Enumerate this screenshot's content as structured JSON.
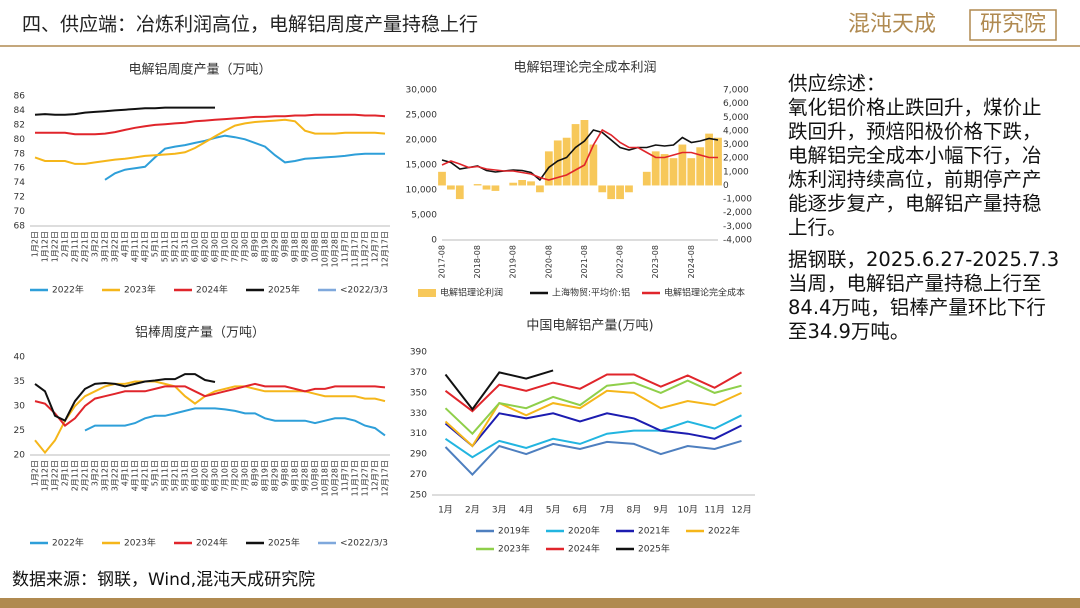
{
  "header": {
    "title": "四、供应端：冶炼利润高位，电解铝周度产量持稳上行",
    "logo": {
      "name": "混沌天成",
      "sub": "研究院"
    }
  },
  "commentary": {
    "heading": "供应综述：",
    "paragraphs": [
      "氧化铝价格止跌回升，煤价止跌回升，预焙阳极价格下跌，电解铝完全成本小幅下行，冶炼利润持续高位，前期停产产能逐步复产，电解铝产量持稳上行。",
      "据钢联，2025.6.27-2025.7.3当周，电解铝产量持稳上行至84.4万吨，铝棒产量环比下行至34.9万吨。"
    ]
  },
  "source": "数据来源：钢联，Wind,混沌天成研究院",
  "chart_data": [
    {
      "type": "line",
      "title": "电解铝周度产量（万吨）",
      "grid": false,
      "categories": [
        "1月2日",
        "1月12日",
        "1月22日",
        "2月1日",
        "2月11日",
        "2月21日",
        "3月2日",
        "3月12日",
        "3月22日",
        "4月1日",
        "4月11日",
        "4月21日",
        "5月1日",
        "5月11日",
        "5月21日",
        "5月31日",
        "6月10日",
        "6月20日",
        "6月30日",
        "7月10日",
        "7月20日",
        "7月30日",
        "8月9日",
        "8月19日",
        "8月29日",
        "9月8日",
        "9月18日",
        "9月28日",
        "10月8日",
        "10月18日",
        "10月28日",
        "11月7日",
        "11月17日",
        "11月27日",
        "12月7日",
        "12月17日"
      ],
      "ylim": [
        68,
        86
      ],
      "yticks": [
        68,
        70,
        72,
        74,
        76,
        78,
        80,
        82,
        84,
        86
      ],
      "series": [
        {
          "name": "2022年",
          "color": "#2e9fd9",
          "values": [
            null,
            null,
            null,
            null,
            null,
            null,
            null,
            74.4,
            75.3,
            75.8,
            76,
            76.2,
            77.5,
            78.7,
            79,
            79.2,
            79.5,
            79.8,
            80.2,
            80.5,
            80.3,
            80,
            79.5,
            79,
            77.8,
            76.8,
            77,
            77.3,
            77.4,
            77.5,
            77.6,
            77.7,
            77.9,
            78,
            78,
            78
          ]
        },
        {
          "name": "2023年",
          "color": "#f5b61a",
          "values": [
            77.5,
            77,
            77,
            77,
            76.6,
            76.6,
            76.8,
            77,
            77.2,
            77.3,
            77.5,
            77.7,
            77.8,
            77.9,
            78,
            78.2,
            78.8,
            79.6,
            80.4,
            81.2,
            81.9,
            82.2,
            82.4,
            82.5,
            82.6,
            82.7,
            82.5,
            81.2,
            80.8,
            80.8,
            80.8,
            80.9,
            80.9,
            80.9,
            80.9,
            80.8
          ]
        },
        {
          "name": "2024年",
          "color": "#e0252b",
          "values": [
            80.9,
            80.9,
            80.9,
            80.9,
            80.7,
            80.7,
            80.7,
            80.8,
            81,
            81.3,
            81.6,
            81.8,
            82,
            82.1,
            82.2,
            82.3,
            82.5,
            82.6,
            82.7,
            82.8,
            82.9,
            83,
            83.1,
            83.1,
            83.2,
            83.2,
            83.3,
            83.3,
            83.4,
            83.4,
            83.4,
            83.4,
            83.4,
            83.3,
            83.3,
            83.2
          ]
        },
        {
          "name": "2025年",
          "color": "#111111",
          "values": [
            83.4,
            83.5,
            83.4,
            83.4,
            83.5,
            83.7,
            83.8,
            83.9,
            84,
            84.1,
            84.2,
            84.3,
            84.3,
            84.4,
            84.4,
            84.4,
            84.4,
            84.4,
            84.4,
            null,
            null,
            null,
            null,
            null,
            null,
            null,
            null,
            null,
            null,
            null,
            null,
            null,
            null,
            null,
            null,
            null
          ]
        },
        {
          "name": "<2022/3/3",
          "color": "#7fa8dc",
          "values": [
            null,
            null,
            null,
            null,
            null,
            null,
            null,
            null,
            null,
            null,
            null,
            null,
            null,
            null,
            null,
            null,
            null,
            null,
            null,
            null,
            null,
            null,
            null,
            null,
            null,
            null,
            null,
            null,
            null,
            null,
            null,
            null,
            null,
            null,
            null,
            null
          ]
        }
      ]
    },
    {
      "type": "line",
      "title": "铝棒周度产量（万吨）",
      "grid": false,
      "categories": [
        "1月2日",
        "1月12日",
        "1月22日",
        "2月1日",
        "2月11日",
        "2月21日",
        "3月2日",
        "3月12日",
        "3月22日",
        "4月1日",
        "4月11日",
        "4月21日",
        "5月1日",
        "5月11日",
        "5月21日",
        "5月31日",
        "6月10日",
        "6月20日",
        "6月30日",
        "7月10日",
        "7月20日",
        "7月30日",
        "8月9日",
        "8月19日",
        "8月29日",
        "9月8日",
        "9月18日",
        "9月28日",
        "10月8日",
        "10月18日",
        "10月28日",
        "11月7日",
        "11月17日",
        "11月27日",
        "12月7日",
        "12月17日"
      ],
      "ylim": [
        20,
        40
      ],
      "yticks": [
        20,
        25,
        30,
        35,
        40
      ],
      "series": [
        {
          "name": "2022年",
          "color": "#2e9fd9",
          "values": [
            null,
            null,
            null,
            null,
            null,
            25,
            26,
            26,
            26,
            26,
            26.5,
            27.5,
            28,
            28,
            28.5,
            29,
            29.5,
            29.5,
            29.5,
            29.3,
            29,
            28.5,
            28.5,
            27.5,
            27,
            27,
            27,
            27,
            26.5,
            27,
            27.5,
            27.5,
            27,
            26,
            25.5,
            24
          ]
        },
        {
          "name": "2023年",
          "color": "#f5b61a",
          "values": [
            23,
            20.5,
            23,
            27,
            30,
            32,
            33,
            34,
            34.5,
            34.5,
            35,
            35,
            35,
            34.5,
            34,
            32,
            30.5,
            32,
            33,
            33.5,
            34,
            34,
            33.5,
            33,
            33,
            33,
            33,
            33,
            32.5,
            32,
            32,
            32,
            32,
            31.5,
            31.5,
            31
          ]
        },
        {
          "name": "2024年",
          "color": "#e0252b",
          "values": [
            31,
            30.5,
            28.5,
            26,
            27.5,
            30,
            31.5,
            32,
            32.5,
            33,
            33,
            33,
            33.5,
            34,
            34,
            34,
            33,
            32,
            32.5,
            33,
            33.5,
            34,
            34.5,
            34,
            34,
            34,
            33.5,
            33,
            33.5,
            33.5,
            34,
            34,
            34,
            34,
            34,
            33.8
          ]
        },
        {
          "name": "2025年",
          "color": "#111111",
          "values": [
            34.5,
            33,
            28,
            27,
            31,
            33.5,
            34.5,
            34.7,
            34.5,
            34,
            34.5,
            35,
            35.2,
            35.5,
            35.5,
            36.5,
            36.5,
            35.3,
            34.9,
            null,
            null,
            null,
            null,
            null,
            null,
            null,
            null,
            null,
            null,
            null,
            null,
            null,
            null,
            null,
            null,
            null
          ]
        },
        {
          "name": "<2022/3/3",
          "color": "#7fa8dc",
          "values": [
            null,
            null,
            null,
            null,
            null,
            null,
            null,
            null,
            null,
            null,
            null,
            null,
            null,
            null,
            null,
            null,
            null,
            null,
            null,
            null,
            null,
            null,
            null,
            null,
            null,
            null,
            null,
            null,
            null,
            null,
            null,
            null,
            null,
            null,
            null,
            null
          ]
        }
      ]
    },
    {
      "type": "combo",
      "title": "电解铝理论完全成本利润",
      "grid": false,
      "x": [
        "2017-08",
        "2017-11",
        "2018-02",
        "2018-05",
        "2018-08",
        "2018-11",
        "2019-02",
        "2019-05",
        "2019-08",
        "2019-11",
        "2020-02",
        "2020-05",
        "2020-08",
        "2020-11",
        "2021-02",
        "2021-05",
        "2021-08",
        "2021-11",
        "2022-02",
        "2022-05",
        "2022-08",
        "2022-11",
        "2023-02",
        "2023-05",
        "2023-08",
        "2023-11",
        "2024-02",
        "2024-05",
        "2024-08",
        "2024-11",
        "2025-02",
        "2025-05"
      ],
      "xticks": [
        "2017-08",
        "2018-08",
        "2019-08",
        "2020-08",
        "2021-08",
        "2022-08",
        "2023-08",
        "2024-08"
      ],
      "ylim": [
        0,
        30000
      ],
      "yticks": [
        0,
        {
          "value": 5000,
          "label": "5,000"
        },
        {
          "value": 10000,
          "label": "10,000"
        },
        {
          "value": 15000,
          "label": "15,000"
        },
        {
          "value": 20000,
          "label": "20,000"
        },
        {
          "value": 25000,
          "label": "25,000"
        },
        {
          "value": 30000,
          "label": "30,000"
        }
      ],
      "y2lim": [
        -4000,
        7000
      ],
      "y2ticks": [
        {
          "value": -4000,
          "label": "-4,000"
        },
        {
          "value": -3000,
          "label": "-3,000"
        },
        {
          "value": -2000,
          "label": "-2,000"
        },
        {
          "value": -1000,
          "label": "-1,000"
        },
        0,
        {
          "value": 1000,
          "label": "1,000"
        },
        {
          "value": 2000,
          "label": "2,000"
        },
        {
          "value": 3000,
          "label": "3,000"
        },
        {
          "value": 4000,
          "label": "4,000"
        },
        {
          "value": 5000,
          "label": "5,000"
        },
        {
          "value": 6000,
          "label": "6,000"
        },
        {
          "value": 7000,
          "label": "7,000"
        }
      ],
      "series": [
        {
          "name": "电解铝理论利润",
          "color": "#f7c85a",
          "style": "bar",
          "axis": "y2",
          "values": [
            1000,
            -300,
            -1000,
            0,
            100,
            -300,
            -400,
            0,
            200,
            400,
            300,
            -500,
            2500,
            3300,
            3500,
            4500,
            4800,
            3000,
            -500,
            -1000,
            -1000,
            -500,
            0,
            1000,
            2500,
            2300,
            2000,
            3000,
            2000,
            2800,
            3800,
            3500
          ]
        },
        {
          "name": "上海物贸:平均价:铝",
          "color": "#111111",
          "style": "line",
          "values": [
            16000,
            15500,
            14200,
            14500,
            14800,
            13900,
            13600,
            13800,
            14000,
            13900,
            13500,
            12000,
            14500,
            15800,
            16500,
            18500,
            19800,
            22000,
            21500,
            20000,
            18500,
            18000,
            18500,
            18500,
            19000,
            18800,
            19000,
            20500,
            19500,
            19800,
            20300,
            20000
          ]
        },
        {
          "name": "电解铝理论完全成本",
          "color": "#e0252b",
          "style": "line",
          "values": [
            15000,
            15800,
            15200,
            14500,
            14700,
            14200,
            14000,
            13800,
            13800,
            13500,
            13200,
            12500,
            12000,
            12500,
            13000,
            14000,
            15000,
            19000,
            22000,
            21000,
            19500,
            18500,
            18500,
            17500,
            16500,
            16500,
            17000,
            17500,
            17500,
            17000,
            16500,
            16500
          ]
        }
      ]
    },
    {
      "type": "line",
      "title": "中国电解铝产量(万吨)",
      "grid": false,
      "categories": [
        "1月",
        "2月",
        "3月",
        "4月",
        "5月",
        "6月",
        "7月",
        "8月",
        "9月",
        "10月",
        "11月",
        "12月"
      ],
      "ylim": [
        250,
        390
      ],
      "yticks": [
        250,
        270,
        290,
        310,
        330,
        350,
        370,
        390
      ],
      "series": [
        {
          "name": "2019年",
          "color": "#4e7fbf",
          "values": [
            297,
            270,
            298,
            290,
            300,
            295,
            302,
            300,
            290,
            298,
            295,
            303
          ]
        },
        {
          "name": "2020年",
          "color": "#22b5e0",
          "values": [
            305,
            287,
            303,
            296,
            305,
            300,
            310,
            313,
            313,
            322,
            315,
            328
          ]
        },
        {
          "name": "2021年",
          "color": "#1c1cb0",
          "values": [
            320,
            298,
            330,
            325,
            330,
            322,
            330,
            325,
            313,
            310,
            305,
            318
          ]
        },
        {
          "name": "2022年",
          "color": "#f5b61a",
          "values": [
            322,
            298,
            340,
            328,
            340,
            335,
            352,
            350,
            335,
            342,
            338,
            350
          ]
        },
        {
          "name": "2023年",
          "color": "#8fcf4a",
          "values": [
            335,
            310,
            340,
            335,
            346,
            338,
            357,
            360,
            350,
            362,
            350,
            357
          ]
        },
        {
          "name": "2024年",
          "color": "#e0252b",
          "values": [
            352,
            332,
            358,
            352,
            360,
            354,
            368,
            368,
            356,
            367,
            355,
            370
          ]
        },
        {
          "name": "2025年",
          "color": "#111111",
          "values": [
            368,
            334,
            370,
            364,
            372,
            null,
            null,
            null,
            null,
            null,
            null,
            null
          ]
        }
      ]
    }
  ]
}
